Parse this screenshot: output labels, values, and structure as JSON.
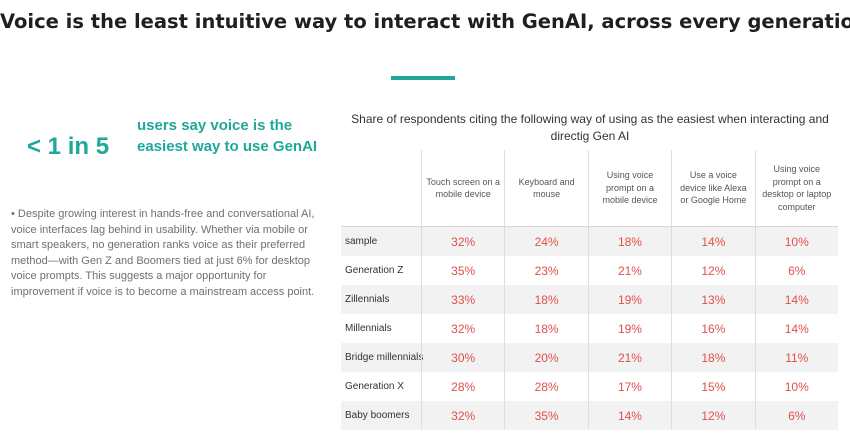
{
  "headline": "Voice is the least intuitive way to interact with GenAI, across every generation.",
  "colors": {
    "accent": "#1fa89a",
    "value_red": "#e0504a",
    "row_stripe": "#f2f2f2"
  },
  "stat": {
    "value": "< 1 in 5",
    "text": "users say voice is the easiest way to use GenAI"
  },
  "body_text": "• Despite growing interest in hands-free and conversational AI, voice interfaces lag behind in usability. Whether via mobile or smart speakers, no generation ranks voice as their preferred method—with Gen Z and Boomers tied at just 6% for desktop voice prompts. This suggests a major opportunity for improvement if voice is to become a mainstream access point.",
  "chart_data": {
    "type": "table",
    "title": "Share of respondents citing the following way of using as the easiest when interacting and directig Gen AI",
    "columns": [
      "Touch screen on a mobile device",
      "Keyboard and mouse",
      "Using voice prompt on a mobile device",
      "Use a voice device like Alexa or Google Home",
      "Using voice prompt on a desktop or laptop computer"
    ],
    "rows": [
      {
        "label": "sample",
        "values": [
          "32%",
          "24%",
          "18%",
          "14%",
          "10%"
        ]
      },
      {
        "label": "Generation Z",
        "values": [
          "35%",
          "23%",
          "21%",
          "12%",
          "6%"
        ]
      },
      {
        "label": "Zillennials",
        "values": [
          "33%",
          "18%",
          "19%",
          "13%",
          "14%"
        ]
      },
      {
        "label": "Millennials",
        "values": [
          "32%",
          "18%",
          "19%",
          "16%",
          "14%"
        ]
      },
      {
        "label": "Bridge millennials",
        "values": [
          "30%",
          "20%",
          "21%",
          "18%",
          "11%"
        ]
      },
      {
        "label": "Generation X",
        "values": [
          "28%",
          "28%",
          "17%",
          "15%",
          "10%"
        ]
      },
      {
        "label": "Baby boomers",
        "values": [
          "32%",
          "35%",
          "14%",
          "12%",
          "6%"
        ]
      }
    ]
  }
}
